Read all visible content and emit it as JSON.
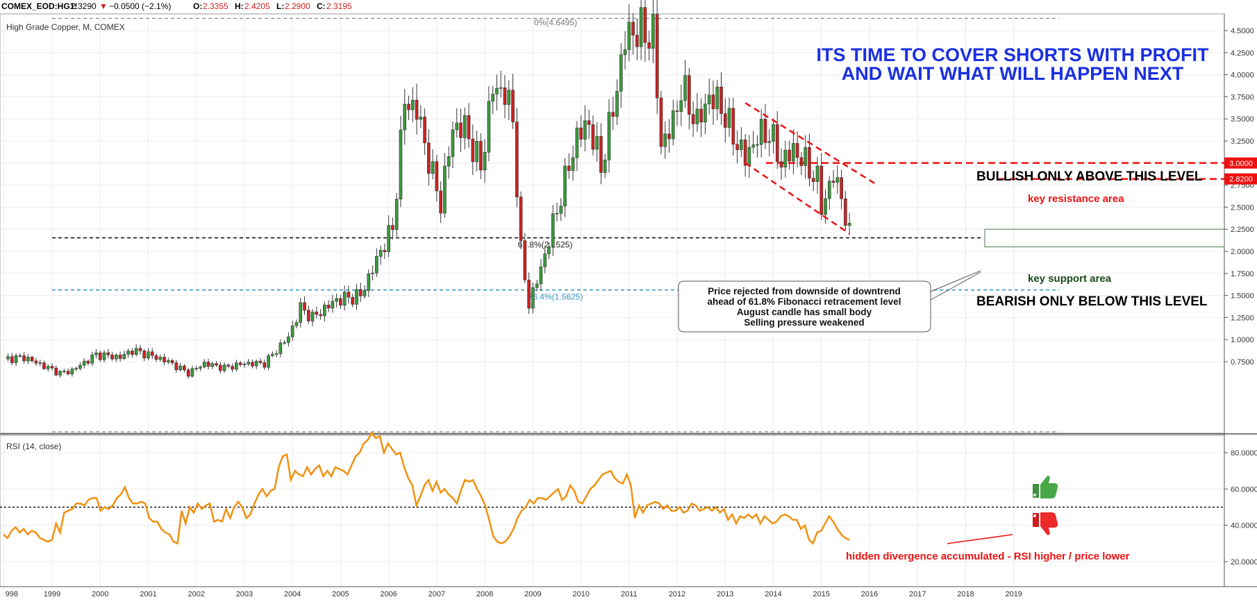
{
  "header": {
    "symbol": "COMEX_EOD:HG1!",
    "last": "2.3290",
    "change": "−0.0500 (−2.1%)",
    "o_label": "O:",
    "o_value": "2.3355",
    "h_label": "H:",
    "h_value": "2.4205",
    "l_label": "L:",
    "l_value": "2.2900",
    "c_label": "C:",
    "c_value": "2.3195"
  },
  "colors": {
    "up_candle": "#3a9a3a",
    "down_candle": "#cc2222",
    "rsi_line": "#f2900f",
    "headline": "#1a2fe0",
    "resistance": "#ee1111",
    "fib_618": "#111111",
    "fib_764": "#3a98c8",
    "support_text": "#1a4a1a"
  },
  "chart_data": [
    {
      "type": "candlestick",
      "title": "High Grade Copper, M, COMEX",
      "timeframe": "monthly",
      "ylim": [
        0.55,
        4.68
      ],
      "y_ticks": [
        "4.5000",
        "4.2500",
        "4.0000",
        "3.7500",
        "3.5000",
        "3.2500",
        "3.0000",
        "2.7500",
        "2.5000",
        "2.2500",
        "2.0000",
        "1.7500",
        "1.5000",
        "1.2500",
        "1.0000",
        "0.7500"
      ],
      "x_ticks": [
        "998",
        "1999",
        "2000",
        "2001",
        "2002",
        "2003",
        "2004",
        "2005",
        "2006",
        "2007",
        "2008",
        "2009",
        "2010",
        "2011",
        "2012",
        "2013",
        "2014",
        "2015",
        "2016",
        "2017",
        "2018",
        "2019"
      ],
      "price_anchors": [
        [
          "1998-01",
          0.78
        ],
        [
          "1998-06",
          0.8
        ],
        [
          "1999-03",
          0.62
        ],
        [
          "1999-06",
          0.65
        ],
        [
          "1999-12",
          0.83
        ],
        [
          "2000-06",
          0.8
        ],
        [
          "2000-09",
          0.88
        ],
        [
          "2001-01",
          0.83
        ],
        [
          "2001-06",
          0.75
        ],
        [
          "2001-11",
          0.62
        ],
        [
          "2002-03",
          0.73
        ],
        [
          "2002-08",
          0.68
        ],
        [
          "2003-01",
          0.73
        ],
        [
          "2003-06",
          0.73
        ],
        [
          "2003-12",
          1.03
        ],
        [
          "2004-03",
          1.36
        ],
        [
          "2004-06",
          1.25
        ],
        [
          "2004-12",
          1.45
        ],
        [
          "2005-06",
          1.5
        ],
        [
          "2005-09",
          1.8
        ],
        [
          "2005-12",
          2.1
        ],
        [
          "2006-02",
          2.25
        ],
        [
          "2006-05",
          3.7
        ],
        [
          "2006-08",
          3.6
        ],
        [
          "2006-12",
          2.85
        ],
        [
          "2007-02",
          2.55
        ],
        [
          "2007-05",
          3.4
        ],
        [
          "2007-08",
          3.4
        ],
        [
          "2007-12",
          2.95
        ],
        [
          "2008-03",
          3.85
        ],
        [
          "2008-06",
          3.8
        ],
        [
          "2008-08",
          3.5
        ],
        [
          "2008-10",
          2.0
        ],
        [
          "2008-12",
          1.4
        ],
        [
          "2009-03",
          1.8
        ],
        [
          "2009-06",
          2.3
        ],
        [
          "2009-09",
          2.8
        ],
        [
          "2009-12",
          3.3
        ],
        [
          "2010-03",
          3.45
        ],
        [
          "2010-06",
          2.95
        ],
        [
          "2010-09",
          3.6
        ],
        [
          "2010-12",
          4.4
        ],
        [
          "2011-02",
          4.5
        ],
        [
          "2011-07",
          4.45
        ],
        [
          "2011-09",
          3.2
        ],
        [
          "2011-12",
          3.45
        ],
        [
          "2012-02",
          3.85
        ],
        [
          "2012-06",
          3.45
        ],
        [
          "2012-09",
          3.75
        ],
        [
          "2012-12",
          3.65
        ],
        [
          "2013-02",
          3.4
        ],
        [
          "2013-06",
          3.05
        ],
        [
          "2013-09",
          3.3
        ],
        [
          "2013-12",
          3.35
        ],
        [
          "2014-03",
          3.0
        ],
        [
          "2014-06",
          3.15
        ],
        [
          "2014-09",
          3.0
        ],
        [
          "2014-12",
          2.8
        ],
        [
          "2015-01",
          2.5
        ],
        [
          "2015-04",
          2.85
        ],
        [
          "2015-06",
          2.65
        ],
        [
          "2015-07",
          2.35
        ],
        [
          "2015-08",
          2.3195
        ]
      ],
      "levels": [
        {
          "label": "0%(4.6495)",
          "value": 4.6495
        },
        {
          "label": "61.8%(2.1525)",
          "value": 2.1525
        },
        {
          "label": "76.4%(1.5625)",
          "value": 1.5625
        },
        {
          "label": "3.0000",
          "value": 3.0
        },
        {
          "label": "2.8200",
          "value": 2.82
        },
        {
          "label": "",
          "value": 0.6
        }
      ],
      "downtrend_channel": {
        "upper": [
          [
            "2013-06",
            3.68
          ],
          [
            "2016-03",
            2.75
          ]
        ],
        "lower": [
          [
            "2013-06",
            3.0
          ],
          [
            "2015-08",
            2.2
          ]
        ]
      },
      "support_zone": [
        2.05,
        2.25
      ]
    },
    {
      "type": "line",
      "title": "RSI (14, close)",
      "ylim": [
        13,
        92
      ],
      "y_ticks": [
        "80.0000",
        "60.0000",
        "40.0000",
        "20.0000"
      ],
      "reference_line": 50,
      "series": [
        {
          "values": [
            35,
            33,
            37,
            39,
            36,
            38,
            35,
            37,
            36,
            33,
            32,
            31,
            32,
            41,
            36,
            47,
            48,
            49,
            52,
            52,
            51,
            54,
            55,
            55,
            48,
            50,
            49,
            51,
            55,
            57,
            61,
            55,
            52,
            52,
            53,
            52,
            44,
            42,
            42,
            38,
            36,
            35,
            31,
            30,
            48,
            41,
            50,
            47,
            52,
            49,
            51,
            52,
            42,
            43,
            42,
            49,
            44,
            50,
            53,
            50,
            44,
            46,
            52,
            57,
            60,
            56,
            59,
            60,
            72,
            78,
            79,
            65,
            70,
            68,
            67,
            72,
            68,
            71,
            73,
            67,
            70,
            67,
            72,
            71,
            70,
            68,
            73,
            78,
            80,
            85,
            87,
            91,
            88,
            89,
            80,
            85,
            82,
            79,
            80,
            72,
            66,
            62,
            51,
            56,
            62,
            65,
            59,
            64,
            58,
            60,
            57,
            55,
            52,
            59,
            65,
            64,
            65,
            60,
            56,
            51,
            43,
            34,
            31,
            30,
            31,
            34,
            38,
            44,
            48,
            50,
            54,
            52,
            55,
            55,
            54,
            56,
            58,
            60,
            54,
            56,
            62,
            59,
            53,
            52,
            56,
            60,
            62,
            65,
            68,
            69,
            70,
            66,
            64,
            63,
            68,
            62,
            44,
            51,
            47,
            51,
            52,
            53,
            52,
            49,
            51,
            48,
            48,
            50,
            47,
            48,
            52,
            51,
            48,
            49,
            50,
            48,
            50,
            47,
            49,
            43,
            46,
            41,
            45,
            44,
            46,
            44,
            46,
            41,
            45,
            43,
            41,
            42,
            45,
            46,
            45,
            43,
            43,
            38,
            40,
            32,
            30,
            36,
            37,
            41,
            45,
            42,
            38,
            35,
            33,
            32
          ]
        }
      ]
    }
  ],
  "annotations": {
    "headline_line1": "ITS TIME TO COVER SHORTS WITH PROFIT",
    "headline_line2": "AND WAIT WHAT WILL HAPPEN NEXT",
    "bullish": "BULLISH ONLY ABOVE THIS LEVEL",
    "bearish": "BEARISH ONLY BELOW THIS LEVEL",
    "key_resistance": "key resistance area",
    "key_support": "key support area",
    "note_line1": "Price rejected from downside of downtrend",
    "note_line2": "ahead of 61.8% Fibonacci retracement level",
    "note_line3": "August candle has small body",
    "note_line4": "Selling pressure weakened",
    "divergence": "hidden divergence accumulated - RSI higher / price lower",
    "thumb_up_icon": "thumbs-up-icon",
    "thumb_down_icon": "thumbs-down-icon"
  }
}
